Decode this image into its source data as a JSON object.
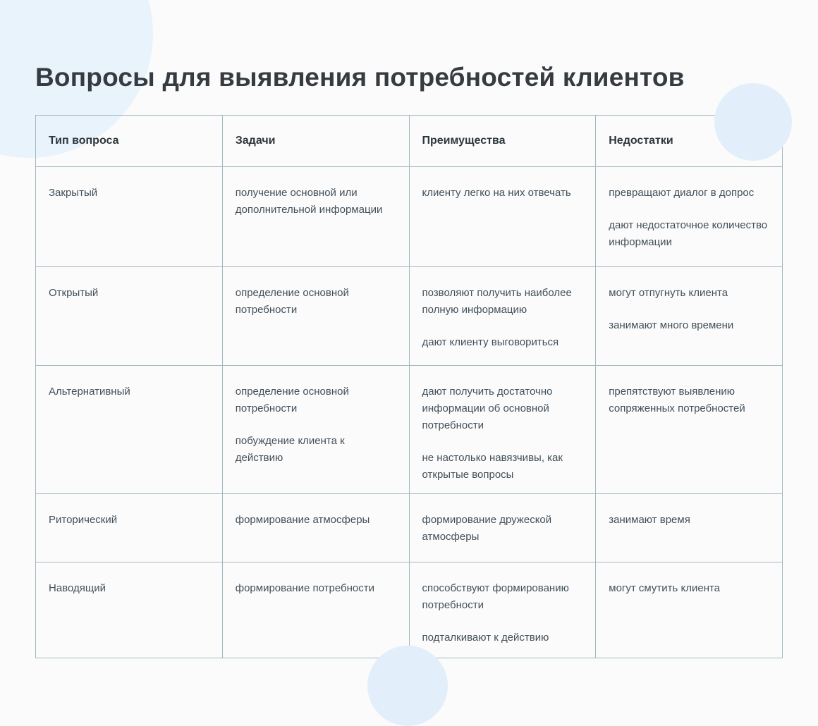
{
  "title": "Вопросы для выявления потребностей клиентов",
  "table": {
    "columns": [
      "Тип вопроса",
      "Задачи",
      "Преимущества",
      "Недостатки"
    ],
    "rows": [
      {
        "type": "Закрытый",
        "tasks": [
          "получение основной или дополнительной информации"
        ],
        "advantages": [
          "клиенту легко на них отвечать"
        ],
        "disadvantages": [
          "превращают диалог в допрос",
          "дают недостаточное количество информации"
        ]
      },
      {
        "type": "Открытый",
        "tasks": [
          "определение основной потребности"
        ],
        "advantages": [
          "позволяют получить наиболее полную информацию",
          "дают клиенту выговориться"
        ],
        "disadvantages": [
          "могут отпугнуть клиента",
          "занимают много времени"
        ]
      },
      {
        "type": "Альтернативный",
        "tasks": [
          "определение основной потребности",
          "побуждение клиента к действию"
        ],
        "advantages": [
          "дают получить достаточно информации об основной потребности",
          "не настолько навязчивы, как открытые вопросы"
        ],
        "disadvantages": [
          "препятствуют выявлению сопряженных потребностей"
        ]
      },
      {
        "type": "Риторический",
        "tasks": [
          "формирование атмосферы"
        ],
        "advantages": [
          "формирование дружеской атмосферы"
        ],
        "disadvantages": [
          "занимают время"
        ]
      },
      {
        "type": "Наводящий",
        "tasks": [
          "формирование потребности"
        ],
        "advantages": [
          "способствуют формированию потребности",
          "подталкивают к действию"
        ],
        "disadvantages": [
          "могут смутить клиента"
        ]
      }
    ]
  },
  "colors": {
    "page_background": "#fbfbfb",
    "decorative_circle": "#e2effa",
    "decorative_circle_large": "#e9f3fb",
    "table_border": "#a3b8bd",
    "title_text": "#363b41",
    "header_text": "#2c363c",
    "body_text": "#42505a"
  }
}
